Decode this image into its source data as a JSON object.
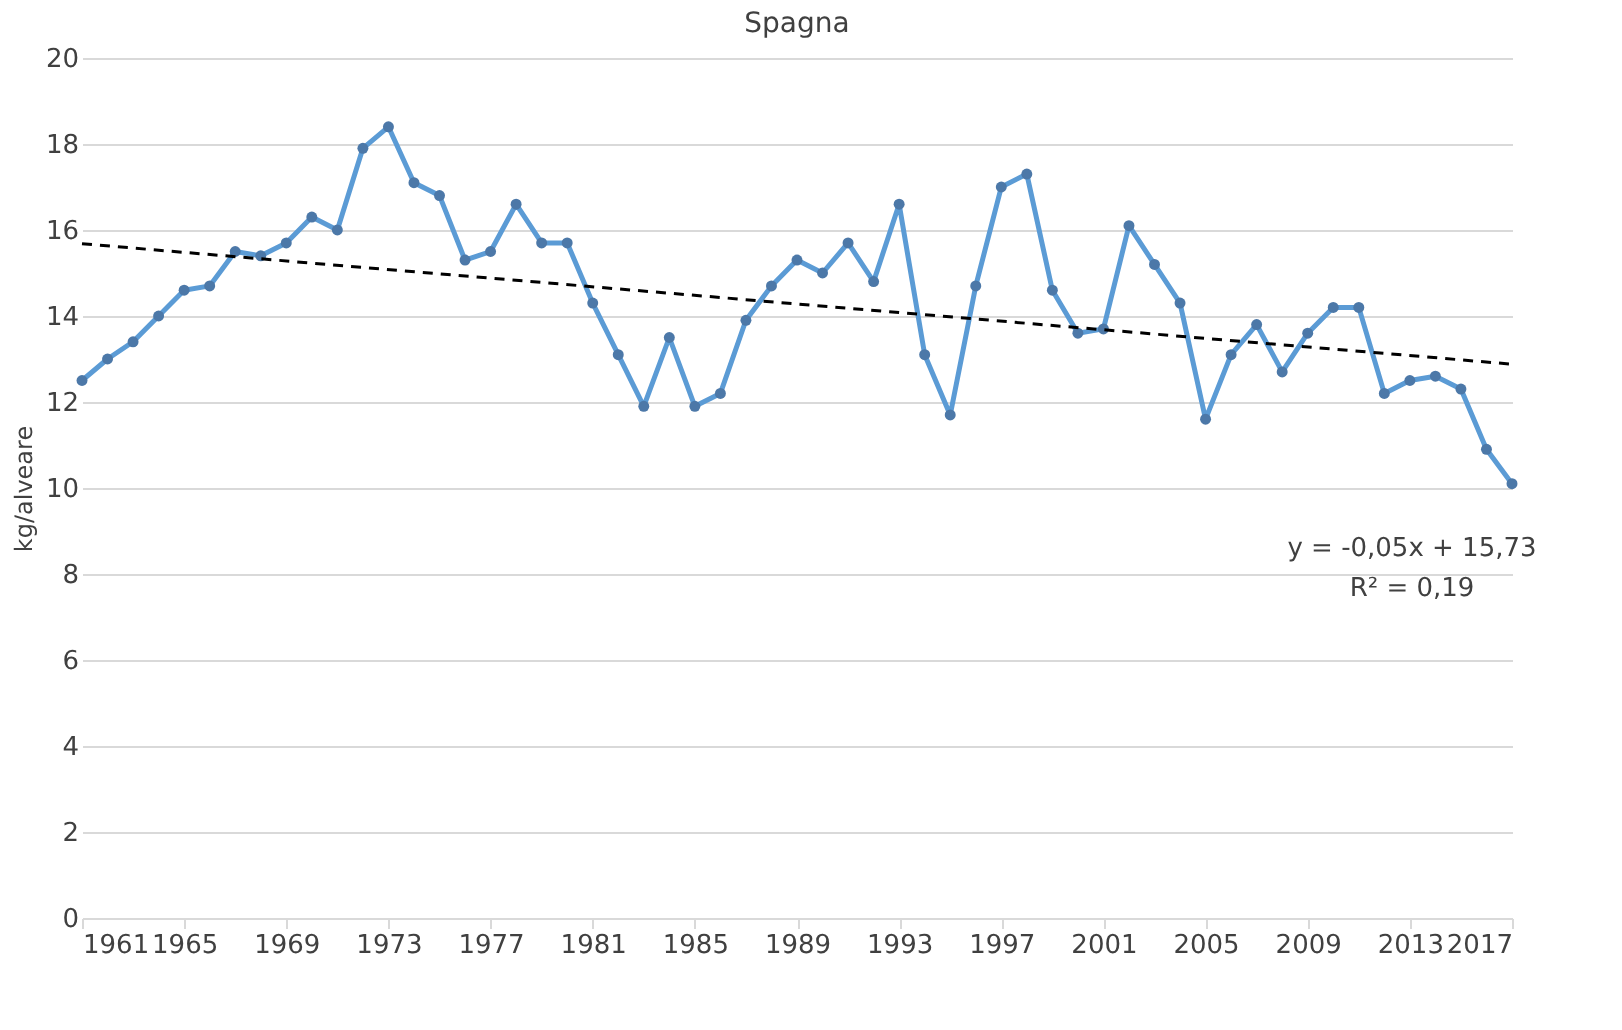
{
  "chart_data": {
    "type": "line",
    "title": "Spagna",
    "ylabel": "kg/alveare",
    "x": [
      1961,
      1962,
      1963,
      1964,
      1965,
      1966,
      1967,
      1968,
      1969,
      1970,
      1971,
      1972,
      1973,
      1974,
      1975,
      1976,
      1977,
      1978,
      1979,
      1980,
      1981,
      1982,
      1983,
      1984,
      1985,
      1986,
      1987,
      1988,
      1989,
      1990,
      1991,
      1992,
      1993,
      1994,
      1995,
      1996,
      1997,
      1998,
      1999,
      2000,
      2001,
      2002,
      2003,
      2004,
      2005,
      2006,
      2007,
      2008,
      2009,
      2010,
      2011,
      2012,
      2013,
      2014,
      2015,
      2016,
      2017
    ],
    "series": [
      {
        "color": "#5b9bd5",
        "marker": "circle",
        "line_style": "solid",
        "values": [
          12.5,
          13.0,
          13.4,
          14.0,
          14.6,
          14.7,
          15.5,
          15.4,
          15.7,
          16.3,
          16.0,
          17.9,
          18.4,
          17.1,
          16.8,
          15.3,
          15.5,
          16.6,
          15.7,
          15.7,
          14.3,
          13.1,
          11.9,
          13.5,
          11.9,
          12.2,
          13.9,
          14.7,
          15.3,
          15.0,
          15.7,
          14.8,
          16.6,
          13.1,
          11.7,
          14.7,
          17.0,
          17.3,
          14.6,
          13.6,
          13.7,
          16.1,
          15.2,
          14.3,
          11.6,
          13.1,
          13.8,
          12.7,
          13.6,
          14.2,
          14.2,
          12.2,
          12.5,
          12.6,
          12.3,
          10.9,
          10.1
        ]
      },
      {
        "type": "line",
        "color": "#000000",
        "marker": "none",
        "line_style": "dashed",
        "x": [
          1961,
          2017
        ],
        "values": [
          15.68,
          12.88
        ]
      }
    ],
    "xlim": [
      1961,
      2017
    ],
    "xticks": [
      1961,
      1965,
      1969,
      1973,
      1977,
      1981,
      1985,
      1989,
      1993,
      1997,
      2001,
      2005,
      2009,
      2013,
      2017
    ],
    "ylim": [
      0,
      20
    ],
    "yticks": [
      0,
      2,
      4,
      6,
      8,
      10,
      12,
      14,
      16,
      18,
      20
    ],
    "grid": "y",
    "legend": false,
    "annotations": [
      "y = -0,05x + 15,73",
      "R² = 0,19"
    ]
  }
}
